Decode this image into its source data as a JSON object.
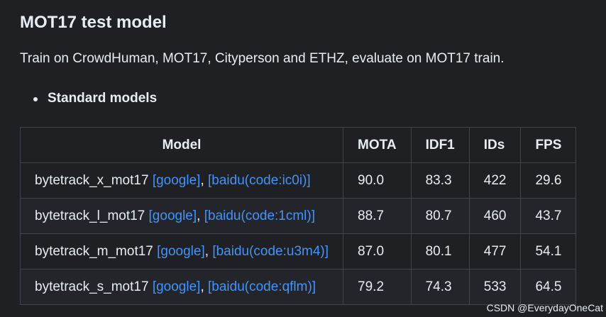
{
  "section": {
    "title": "MOT17 test model",
    "description": "Train on CrowdHuman, MOT17, Cityperson and ETHZ, evaluate on MOT17 train.",
    "list_item": "Standard models"
  },
  "table": {
    "headers": {
      "model": "Model",
      "mota": "MOTA",
      "idf1": "IDF1",
      "ids": "IDs",
      "fps": "FPS"
    },
    "rows": [
      {
        "name": "bytetrack_x_mot17",
        "google": "[google]",
        "sep": ", ",
        "baidu": "[baidu(code:ic0i)]",
        "mota": "90.0",
        "idf1": "83.3",
        "ids": "422",
        "fps": "29.6"
      },
      {
        "name": "bytetrack_l_mot17",
        "google": "[google]",
        "sep": ", ",
        "baidu": "[baidu(code:1cml)]",
        "mota": "88.7",
        "idf1": "80.7",
        "ids": "460",
        "fps": "43.7"
      },
      {
        "name": "bytetrack_m_mot17",
        "google": "[google]",
        "sep": ", ",
        "baidu": "[baidu(code:u3m4)]",
        "mota": "87.0",
        "idf1": "80.1",
        "ids": "477",
        "fps": "54.1"
      },
      {
        "name": "bytetrack_s_mot17",
        "google": "[google]",
        "sep": ", ",
        "baidu": "[baidu(code:qflm)]",
        "mota": "79.2",
        "idf1": "74.3",
        "ids": "533",
        "fps": "64.5"
      }
    ]
  },
  "watermark": "CSDN @EverydayOneCat",
  "colors": {
    "background": "#1f2023",
    "text": "#e6edf3",
    "link": "#4493f8",
    "border": "#3d444d"
  }
}
